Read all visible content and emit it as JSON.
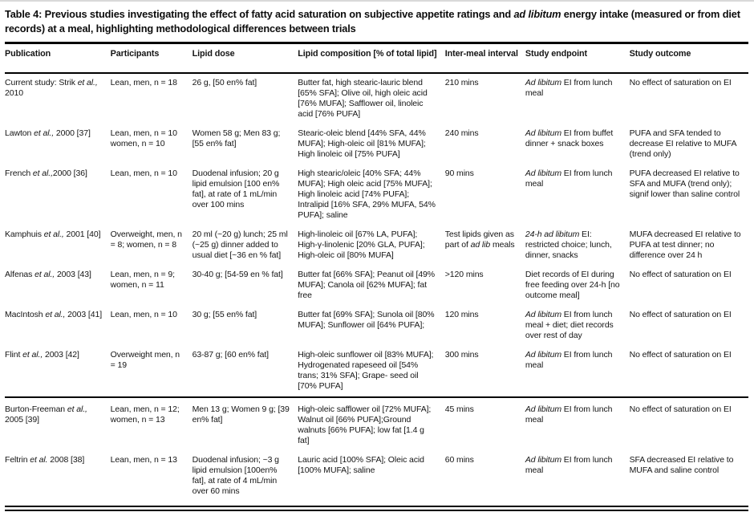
{
  "caption": {
    "segments": [
      {
        "t": "Table 4: Previous studies investigating the effect of fatty acid saturation on subjective appetite ratings and "
      },
      {
        "t": "ad libitum",
        "i": true
      },
      {
        "t": " energy intake (measured or from diet records) at a meal, highlighting methodological differences between trials"
      }
    ]
  },
  "table": {
    "columns": [
      {
        "label": "Publication"
      },
      {
        "label": "Participants"
      },
      {
        "label": "Lipid dose"
      },
      {
        "label": "Lipid composition [% of total lipid]"
      },
      {
        "label": "Inter-meal interval"
      },
      {
        "label": "Study endpoint"
      },
      {
        "label": "Study outcome"
      }
    ],
    "rows": [
      {
        "group_start": false,
        "cells": [
          [
            {
              "t": "Current study: Strik "
            },
            {
              "t": "et al.,",
              "i": true
            },
            {
              "t": " 2010"
            }
          ],
          [
            {
              "t": "Lean, men, n = 18"
            }
          ],
          [
            {
              "t": "26 g, [50 en% fat]"
            }
          ],
          [
            {
              "t": "Butter fat, high stearic-lauric blend [65% SFA]; Olive oil, high oleic acid [76% MUFA]; Safflower oil, linoleic acid [76% PUFA]"
            }
          ],
          [
            {
              "t": "210 mins"
            }
          ],
          [
            {
              "t": "Ad libitum",
              "i": true
            },
            {
              "t": " EI from lunch meal"
            }
          ],
          [
            {
              "t": "No effect of saturation on EI"
            }
          ]
        ]
      },
      {
        "group_start": false,
        "cells": [
          [
            {
              "t": "Lawton "
            },
            {
              "t": "et al.,",
              "i": true
            },
            {
              "t": " 2000 [37]"
            }
          ],
          [
            {
              "t": "Lean, men, n = 10 women, n = 10"
            }
          ],
          [
            {
              "t": "Women 58 g; Men 83 g; [55 en% fat]"
            }
          ],
          [
            {
              "t": "Stearic-oleic blend [44% SFA, 44% MUFA]; High-oleic oil [81% MUFA]; High linoleic oil [75% PUFA]"
            }
          ],
          [
            {
              "t": "240 mins"
            }
          ],
          [
            {
              "t": "Ad libitum",
              "i": true
            },
            {
              "t": " EI from buffet dinner + snack boxes"
            }
          ],
          [
            {
              "t": "PUFA and SFA tended to decrease EI relative to MUFA (trend only)"
            }
          ]
        ]
      },
      {
        "group_start": false,
        "cells": [
          [
            {
              "t": "French "
            },
            {
              "t": "et al.,",
              "i": true
            },
            {
              "t": "2000 [36]"
            }
          ],
          [
            {
              "t": "Lean, men, n = 10"
            }
          ],
          [
            {
              "t": "Duodenal infusion; 20 g lipid emulsion [100 en% fat], at rate of 1 mL/min over 100 mins"
            }
          ],
          [
            {
              "t": "High stearic/oleic [40% SFA; 44% MUFA]; High oleic acid [75% MUFA]; High linoleic acid [74% PUFA]; Intralipid [16% SFA, 29% MUFA, 54% PUFA]; saline"
            }
          ],
          [
            {
              "t": "90 mins"
            }
          ],
          [
            {
              "t": "Ad libitum",
              "i": true
            },
            {
              "t": " EI from lunch meal"
            }
          ],
          [
            {
              "t": "PUFA decreased EI relative to SFA and MUFA (trend only); signif lower than saline control"
            }
          ]
        ]
      },
      {
        "group_start": false,
        "cells": [
          [
            {
              "t": "Kamphuis "
            },
            {
              "t": "et al.,",
              "i": true
            },
            {
              "t": " 2001 [40]"
            }
          ],
          [
            {
              "t": "Overweight, men, n = 8; women, n = 8"
            }
          ],
          [
            {
              "t": "20 ml (~20 g) lunch; 25 ml (~25 g) dinner added to usual diet [~36 en % fat]"
            }
          ],
          [
            {
              "t": "High-linoleic oil [67% LA, PUFA]; High-γ-linolenic [20% GLA, PUFA]; High-oleic oil [80% MUFA]"
            }
          ],
          [
            {
              "t": "Test lipids given as part of "
            },
            {
              "t": "ad lib",
              "i": true
            },
            {
              "t": " meals"
            }
          ],
          [
            {
              "t": "24-h ad libitum",
              "i": true
            },
            {
              "t": " EI: restricted choice; lunch, dinner, snacks"
            }
          ],
          [
            {
              "t": "MUFA decreased EI relative to PUFA at test dinner; no difference over 24 h"
            }
          ]
        ]
      },
      {
        "group_start": false,
        "cells": [
          [
            {
              "t": "Alfenas "
            },
            {
              "t": "et al.,",
              "i": true
            },
            {
              "t": " 2003 [43]"
            }
          ],
          [
            {
              "t": "Lean, men, n = 9; women, n = 11"
            }
          ],
          [
            {
              "t": "30-40 g; [54-59 en % fat]"
            }
          ],
          [
            {
              "t": "Butter fat [66% SFA]; Peanut oil [49% MUFA]; Canola oil [62% MUFA]; fat free"
            }
          ],
          [
            {
              "t": ">120 mins"
            }
          ],
          [
            {
              "t": "Diet records of EI during free feeding over 24-h [no outcome meal]"
            }
          ],
          [
            {
              "t": "No effect of saturation on EI"
            }
          ]
        ]
      },
      {
        "group_start": false,
        "cells": [
          [
            {
              "t": "MacIntosh "
            },
            {
              "t": "et al.,",
              "i": true
            },
            {
              "t": " 2003 [41]"
            }
          ],
          [
            {
              "t": "Lean, men, n = 10"
            }
          ],
          [
            {
              "t": "30 g; [55 en% fat]"
            }
          ],
          [
            {
              "t": "Butter fat [69% SFA]; Sunola oil [80% MUFA]; Sunflower oil [64% PUFA];"
            }
          ],
          [
            {
              "t": "120 mins"
            }
          ],
          [
            {
              "t": "Ad libitum",
              "i": true
            },
            {
              "t": " EI from lunch meal + diet; diet records over rest of day"
            }
          ],
          [
            {
              "t": "No effect of saturation on EI"
            }
          ]
        ]
      },
      {
        "group_start": false,
        "cells": [
          [
            {
              "t": "Flint "
            },
            {
              "t": "et al.,",
              "i": true
            },
            {
              "t": " 2003 [42]"
            }
          ],
          [
            {
              "t": "Overweight men, n = 19"
            }
          ],
          [
            {
              "t": "63-87 g; [60 en% fat]"
            }
          ],
          [
            {
              "t": "High-oleic sunflower oil [83% MUFA]; Hydrogenated rapeseed oil [54% trans; 31% SFA]; Grape- seed oil [70% PUFA]"
            }
          ],
          [
            {
              "t": "300 mins"
            }
          ],
          [
            {
              "t": "Ad libitum",
              "i": true
            },
            {
              "t": " EI from lunch meal"
            }
          ],
          [
            {
              "t": "No effect of saturation on EI"
            }
          ]
        ]
      },
      {
        "group_start": true,
        "cells": [
          [
            {
              "t": "Burton-Freeman "
            },
            {
              "t": "et al.,",
              "i": true
            },
            {
              "t": " 2005 [39]"
            }
          ],
          [
            {
              "t": "Lean, men, n = 12; women, n = 13"
            }
          ],
          [
            {
              "t": "Men 13 g; Women 9 g; [39 en% fat]"
            }
          ],
          [
            {
              "t": "High-oleic safflower oil [72% MUFA]; Walnut oil [66% PUFA];Ground walnuts [66% PUFA]; low fat [1.4 g fat]"
            }
          ],
          [
            {
              "t": "45 mins"
            }
          ],
          [
            {
              "t": "Ad libitum",
              "i": true
            },
            {
              "t": " EI from lunch meal"
            }
          ],
          [
            {
              "t": "No effect of saturation on EI"
            }
          ]
        ]
      },
      {
        "group_start": false,
        "cells": [
          [
            {
              "t": "Feltrin "
            },
            {
              "t": "et al.",
              "i": true
            },
            {
              "t": " 2008 [38]"
            }
          ],
          [
            {
              "t": "Lean, men, n = 13"
            }
          ],
          [
            {
              "t": "Duodenal infusion; ~3 g lipid emulsion [100en% fat], at rate of 4 mL/min over 60 mins"
            }
          ],
          [
            {
              "t": "Lauric acid [100% SFA]; Oleic acid [100% MUFA]; saline"
            }
          ],
          [
            {
              "t": "60 mins"
            }
          ],
          [
            {
              "t": "Ad libitum",
              "i": true
            },
            {
              "t": " EI from lunch meal"
            }
          ],
          [
            {
              "t": "SFA decreased EI relative to MUFA and saline control"
            }
          ]
        ]
      }
    ]
  },
  "colors": {
    "text": "#151515",
    "rule": "#000000",
    "page_edge": "#d9d9d9",
    "background": "#ffffff"
  }
}
